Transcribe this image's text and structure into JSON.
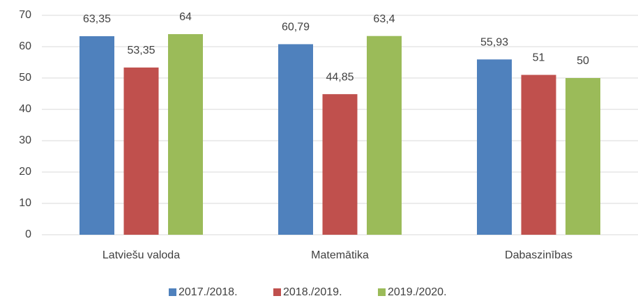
{
  "chart_data": {
    "type": "bar",
    "categories": [
      "Latviešu valoda",
      "Matemātika",
      "Dabaszinības"
    ],
    "series": [
      {
        "name": "2017./2018.",
        "color": "#4f81bd",
        "values": [
          63.35,
          60.79,
          55.93
        ],
        "value_labels": [
          "63,35",
          "60,79",
          "55,93"
        ]
      },
      {
        "name": "2018./2019.",
        "color": "#c0504d",
        "values": [
          53.35,
          44.85,
          51
        ],
        "value_labels": [
          "53,35",
          "44,85",
          "51"
        ]
      },
      {
        "name": "2019./2020.",
        "color": "#9bbb59",
        "values": [
          64,
          63.4,
          50
        ],
        "value_labels": [
          "64",
          "63,4",
          "50"
        ]
      }
    ],
    "ylim": [
      0,
      70
    ],
    "yticks": [
      0,
      10,
      20,
      30,
      40,
      50,
      60,
      70
    ],
    "grid": true,
    "legend": "bottom"
  }
}
